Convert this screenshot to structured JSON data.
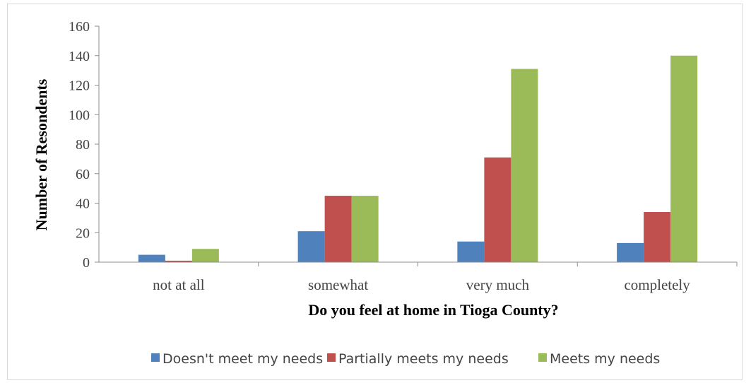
{
  "chart_data": {
    "type": "bar",
    "title": "",
    "xlabel": "Do you feel at home in Tioga County?",
    "ylabel": "Number of Resondents",
    "categories": [
      "not at all",
      "somewhat",
      "very much",
      "completely"
    ],
    "ylim": [
      0,
      160
    ],
    "yticks": [
      0,
      20,
      40,
      60,
      80,
      100,
      120,
      140,
      160
    ],
    "grid": false,
    "legend_position": "bottom",
    "series": [
      {
        "name": "Doesn't meet my needs",
        "color": "#4f81bd",
        "values": [
          5,
          21,
          14,
          13
        ]
      },
      {
        "name": "Partially meets my needs",
        "color": "#c0504d",
        "values": [
          1,
          45,
          71,
          34
        ]
      },
      {
        "name": "Meets my needs",
        "color": "#9bbb59",
        "values": [
          9,
          45,
          131,
          140
        ]
      }
    ]
  }
}
